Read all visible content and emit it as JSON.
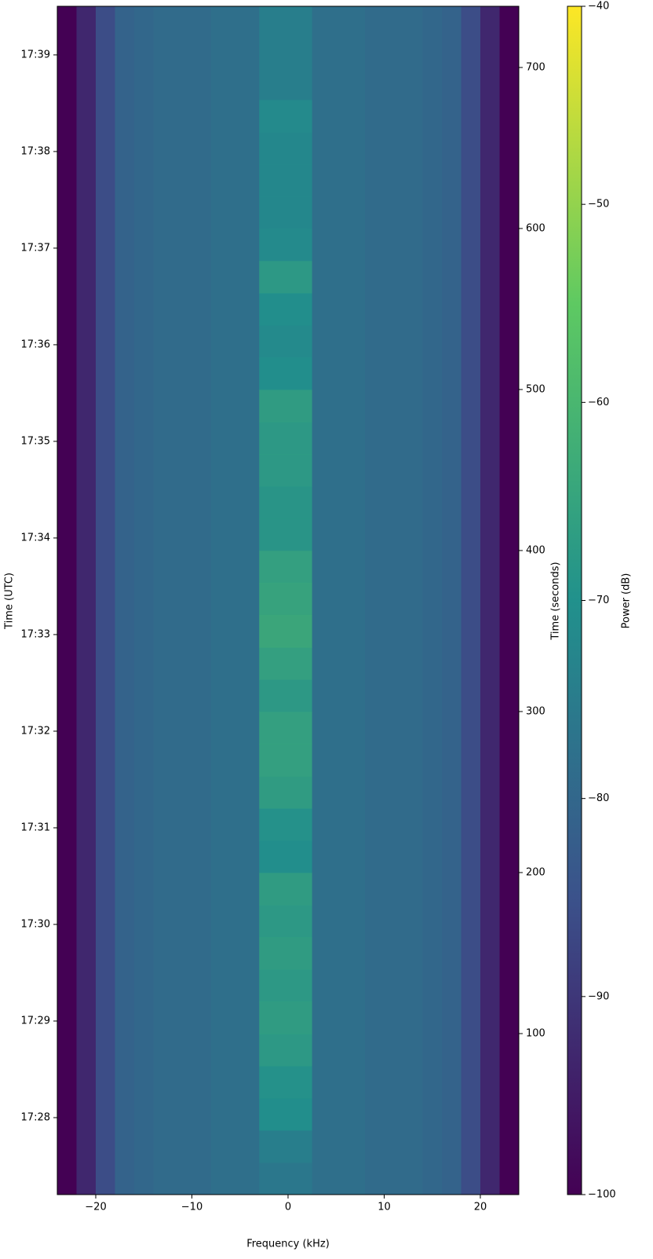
{
  "chart_data": {
    "type": "spectrogram",
    "xlabel": "Frequency (kHz)",
    "ylabel": "Time (UTC)",
    "y2label": "Time (seconds)",
    "colorbar_label": "Power (dB)",
    "xlim": [
      -24,
      24
    ],
    "xticks": [
      {
        "value": -20,
        "label": "−20"
      },
      {
        "value": -10,
        "label": "−10"
      },
      0,
      10,
      20
    ],
    "ylim": [
      0,
      738
    ],
    "yticks": [
      {
        "value": 47.8,
        "label": "17:28"
      },
      {
        "value": 107.8,
        "label": "17:29"
      },
      {
        "value": 167.8,
        "label": "17:30"
      },
      {
        "value": 227.8,
        "label": "17:31"
      },
      {
        "value": 287.8,
        "label": "17:32"
      },
      {
        "value": 347.8,
        "label": "17:33"
      },
      {
        "value": 407.8,
        "label": "17:34"
      },
      {
        "value": 467.8,
        "label": "17:35"
      },
      {
        "value": 527.8,
        "label": "17:36"
      },
      {
        "value": 587.8,
        "label": "17:37"
      },
      {
        "value": 647.8,
        "label": "17:38"
      },
      {
        "value": 707.8,
        "label": "17:39"
      }
    ],
    "y2lim": [
      0,
      738
    ],
    "y2ticks": [
      100,
      200,
      300,
      400,
      500,
      600,
      700
    ],
    "clim": [
      -100,
      -40
    ],
    "cticks": [
      {
        "value": -100,
        "label": "−100"
      },
      {
        "value": -90,
        "label": "−90"
      },
      {
        "value": -80,
        "label": "−80"
      },
      {
        "value": -70,
        "label": "−70"
      },
      {
        "value": -60,
        "label": "−60"
      },
      {
        "value": -50,
        "label": "−50"
      },
      {
        "value": -40,
        "label": "−40"
      }
    ],
    "colormap": [
      "#440154",
      "#3b528b",
      "#21918c",
      "#5ec962",
      "#fde725"
    ],
    "noise_floor": {
      "freq_edges": [
        -24,
        -22,
        -20,
        -18,
        -16,
        -14,
        -12,
        -10,
        -8,
        -6,
        -4,
        -2,
        0,
        2,
        4,
        6,
        8,
        10,
        12,
        14,
        16,
        18,
        20,
        22,
        24
      ],
      "values": [
        -100,
        -93,
        -86,
        -81,
        -80,
        -79,
        -79,
        -79,
        -78,
        -78,
        -78,
        -77,
        -77,
        -78,
        -78,
        -78,
        -79,
        -79,
        -79,
        -80,
        -81,
        -86,
        -93,
        -100
      ]
    },
    "signal": {
      "band": [
        -3,
        2.5
      ],
      "time_edges": [
        0,
        20,
        40,
        60,
        80,
        100,
        120,
        140,
        160,
        180,
        200,
        220,
        240,
        260,
        280,
        300,
        320,
        340,
        360,
        380,
        400,
        420,
        440,
        460,
        480,
        500,
        520,
        540,
        560,
        580,
        600,
        620,
        640,
        660,
        680,
        700,
        720,
        738
      ],
      "values": [
        -76,
        -74,
        -70,
        -69,
        -67,
        -66,
        -67,
        -66,
        -67,
        -66,
        -70,
        -69,
        -66,
        -65,
        -65,
        -67,
        -65,
        -63,
        -64,
        -65,
        -68,
        -68,
        -67,
        -67,
        -66,
        -70,
        -71,
        -70,
        -67,
        -71,
        -72,
        -72,
        -72,
        -71,
        -74,
        -74,
        -74
      ]
    }
  }
}
